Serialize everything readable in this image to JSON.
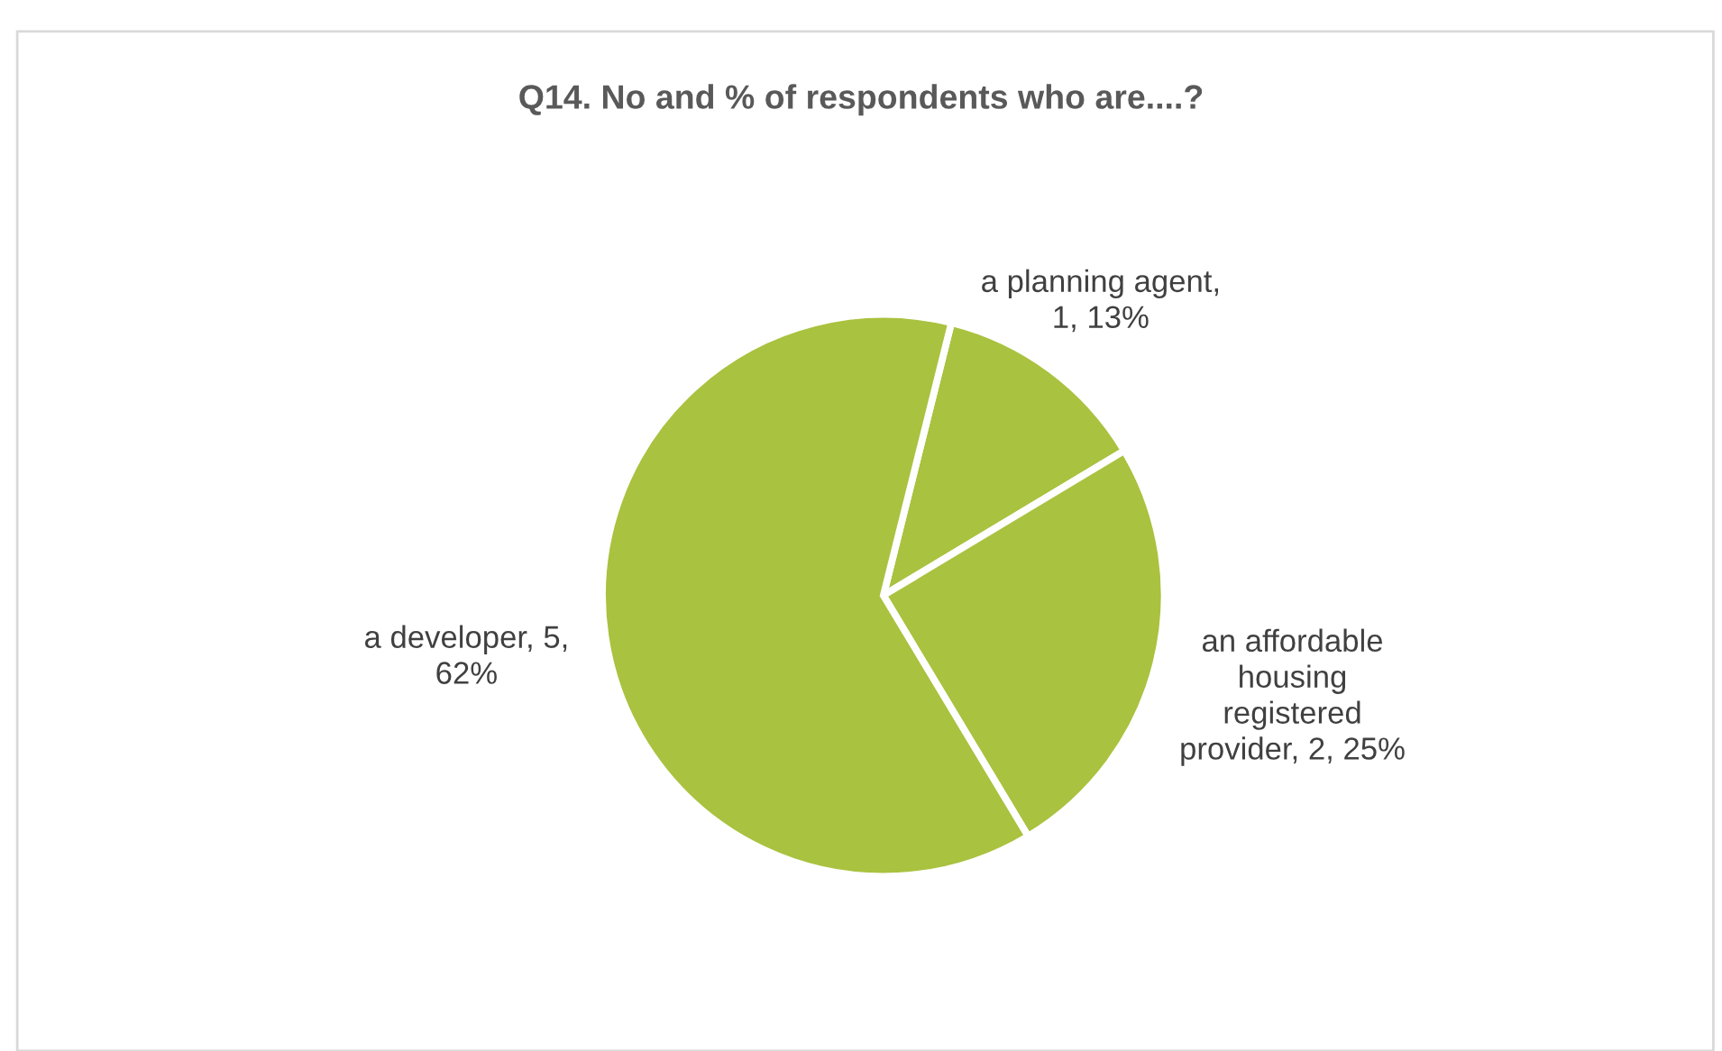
{
  "chart_data": {
    "type": "pie",
    "title": "Q14. No and % of respondents who are....?",
    "categories": [
      "a planning agent, 1, 13%",
      "an affordable housing registered provider, 2, 25%",
      "a developer, 5, 62%"
    ],
    "values": [
      1,
      2,
      5
    ],
    "colors": [
      "#a9c23f",
      "#a9c23f",
      "#a9c23f"
    ],
    "legend": false
  }
}
